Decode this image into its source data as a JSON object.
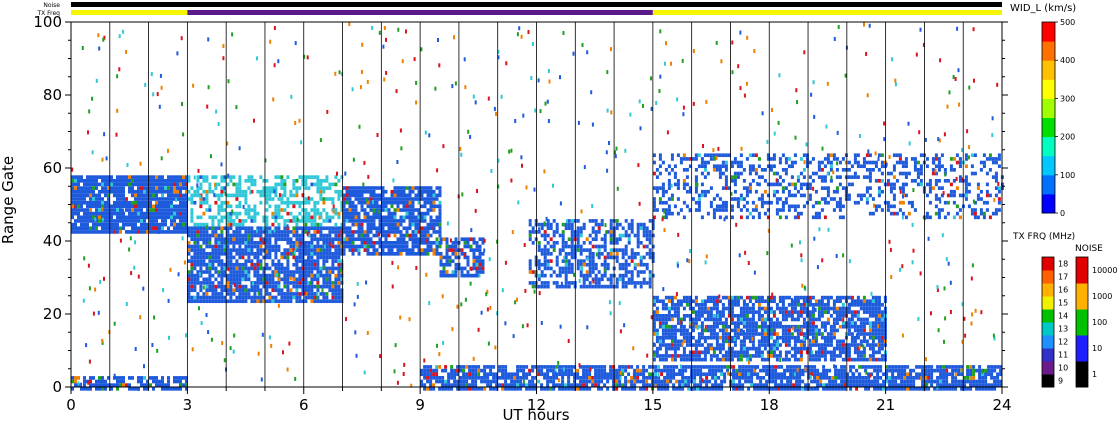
{
  "chart_data": {
    "type": "heatmap",
    "title": "",
    "top_bar_labels": {
      "noise": "Noise",
      "tx_freq": "TX Freq"
    },
    "xlabel": "UT hours",
    "ylabel": "Range Gate",
    "xlim": [
      0,
      24
    ],
    "ylim": [
      0,
      100
    ],
    "x_ticks": [
      0,
      3,
      6,
      9,
      12,
      15,
      18,
      21,
      24
    ],
    "y_ticks": [
      0,
      20,
      40,
      60,
      80,
      100
    ],
    "grid": "vertical lines at scan boundaries",
    "scan_boundaries_hours": [
      0,
      1,
      2,
      3,
      4,
      5,
      6,
      7,
      8,
      9,
      10,
      11,
      12,
      13,
      14,
      15,
      16,
      17,
      18,
      19,
      20,
      21,
      22,
      23,
      24
    ],
    "top_bars": {
      "noise_color": "#000000",
      "tx_freq_segments": [
        {
          "start": 0,
          "end": 3,
          "color": "#f5f500"
        },
        {
          "start": 3,
          "end": 15,
          "color": "#5a1a8a"
        },
        {
          "start": 15,
          "end": 24,
          "color": "#f5f500"
        }
      ]
    },
    "echo_regions": [
      {
        "x0": 0.0,
        "x1": 3.0,
        "y0": 42,
        "y1": 58,
        "color": "#1e5adc",
        "density": 0.9
      },
      {
        "x0": 3.0,
        "x1": 7.0,
        "y0": 24,
        "y1": 44,
        "color": "#1e5adc",
        "density": 0.85
      },
      {
        "x0": 3.0,
        "x1": 7.0,
        "y0": 44,
        "y1": 58,
        "color": "#30c8d8",
        "density": 0.5
      },
      {
        "x0": 7.0,
        "x1": 9.5,
        "y0": 36,
        "y1": 55,
        "color": "#1e5adc",
        "density": 0.8
      },
      {
        "x0": 9.5,
        "x1": 10.6,
        "y0": 31,
        "y1": 41,
        "color": "#1e5adc",
        "density": 0.7
      },
      {
        "x0": 11.8,
        "x1": 15.0,
        "y0": 28,
        "y1": 46,
        "color": "#1e5adc",
        "density": 0.55
      },
      {
        "x0": 15.0,
        "x1": 21.0,
        "y0": 8,
        "y1": 25,
        "color": "#1e5adc",
        "density": 0.75
      },
      {
        "x0": 15.0,
        "x1": 24.0,
        "y0": 46,
        "y1": 64,
        "color": "#1e5adc",
        "density": 0.35
      },
      {
        "x0": 9.0,
        "x1": 24.0,
        "y0": 0,
        "y1": 6,
        "color": "#1e5adc",
        "density": 0.8
      },
      {
        "x0": 0.0,
        "x1": 3.0,
        "y0": 0,
        "y1": 3,
        "color": "#1e5adc",
        "density": 0.6
      }
    ],
    "scatter_colors": [
      "#d8141e",
      "#1e5adc",
      "#30c8d8",
      "#20a020",
      "#f08000"
    ],
    "velocity_scale": {
      "label": "WID_L (km/s)",
      "ticks": [
        0,
        100,
        200,
        300,
        400,
        500
      ],
      "colors": [
        "#0000ff",
        "#0070ff",
        "#00c8ff",
        "#00ffc0",
        "#00e000",
        "#a0ff00",
        "#ffff00",
        "#ffc000",
        "#ff7000",
        "#ff0000"
      ]
    },
    "tx_freq_scale": {
      "label": "TX FRQ (MHz)",
      "ticks": [
        9,
        10,
        11,
        12,
        13,
        14,
        15,
        16,
        17,
        18
      ],
      "colors": [
        "#000000",
        "#6a1a8a",
        "#3030c8",
        "#1e90ff",
        "#00c8c8",
        "#00c000",
        "#f0f000",
        "#ffb000",
        "#ff6000",
        "#e00000"
      ]
    },
    "noise_scale": {
      "label": "NOISE",
      "ticks": [
        "1",
        "10",
        "100",
        "1000",
        "10000"
      ],
      "colors": [
        "#000000",
        "#1e1eff",
        "#00c000",
        "#ffb000",
        "#e00000"
      ]
    }
  }
}
